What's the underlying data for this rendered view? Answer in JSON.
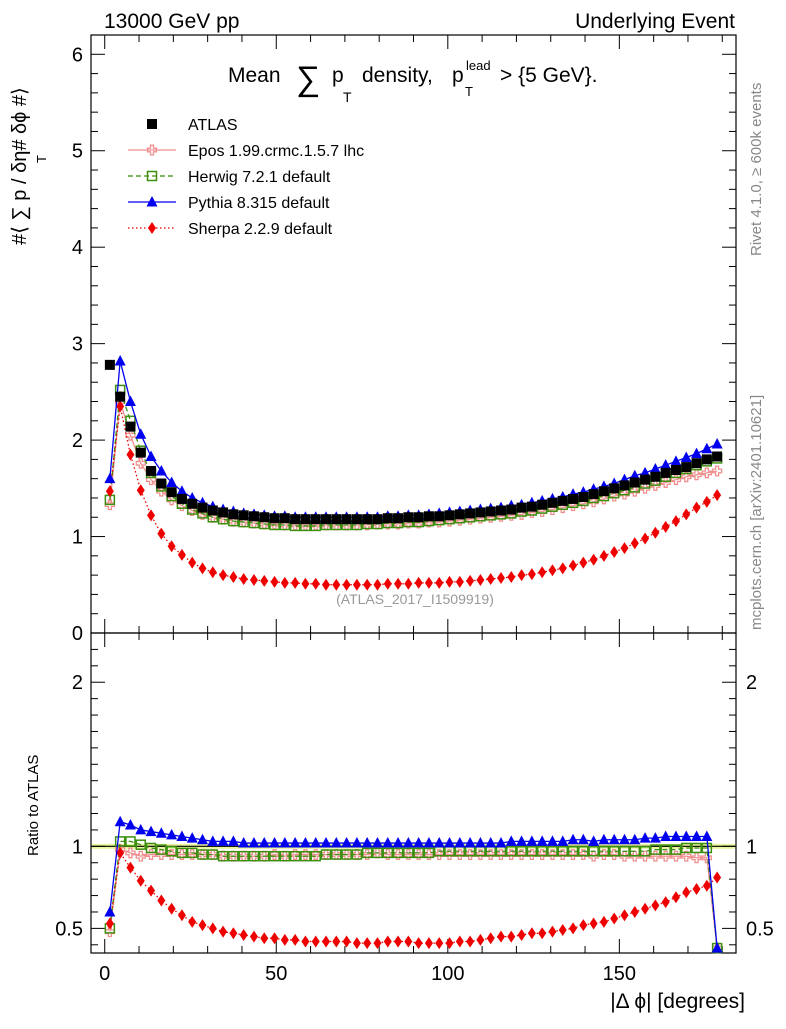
{
  "header": {
    "left": "13000 GeV pp",
    "right": "Underlying Event",
    "side_top": "Rivet 4.1.0, ≥ 600k events",
    "side_bottom": "mcplots.cern.ch [arXiv:2401.10621]",
    "analysis": "(ATLAS_2017_I1509919)"
  },
  "title": {
    "pre": "Mean",
    "sum": "∑",
    "p": "p",
    "sub": "T",
    "mid": "density,",
    "p2": "p",
    "sup": "lead",
    "sub2": "T",
    "post": "> {5 GeV}."
  },
  "axes": {
    "ylabel_main": "#⟨ ∑ p   / δη# δϕ #⟩",
    "ylabel_main_sub": "T",
    "ylabel_ratio": "Ratio to ATLAS",
    "xlabel": "|Δ ϕ| [degrees]"
  },
  "colors": {
    "atlas": "#000000",
    "epos": "#f08f8f",
    "herwig": "#3c8f0f",
    "pythia": "#0000ee",
    "sherpa": "#ee0000",
    "band": "#e8f59a"
  },
  "chart_data": [
    {
      "type": "scatter",
      "name": "main",
      "xlim": [
        -4,
        184
      ],
      "ylim": [
        0,
        6.2
      ],
      "yticks": [
        0,
        1,
        2,
        3,
        4,
        5,
        6
      ],
      "ytick_labels": [
        "0",
        "1",
        "2",
        "3",
        "4",
        "5",
        "6"
      ],
      "x": [
        1.5,
        4.5,
        7.5,
        10.5,
        13.5,
        16.5,
        19.5,
        22.5,
        25.5,
        28.5,
        31.5,
        34.5,
        37.5,
        40.5,
        43.5,
        46.5,
        49.5,
        52.5,
        55.5,
        58.5,
        61.5,
        64.5,
        67.5,
        70.5,
        73.5,
        76.5,
        79.5,
        82.5,
        85.5,
        88.5,
        91.5,
        94.5,
        97.5,
        100.5,
        103.5,
        106.5,
        109.5,
        112.5,
        115.5,
        118.5,
        121.5,
        124.5,
        127.5,
        130.5,
        133.5,
        136.5,
        139.5,
        142.5,
        145.5,
        148.5,
        151.5,
        154.5,
        157.5,
        160.5,
        163.5,
        166.5,
        169.5,
        172.5,
        175.5,
        178.5
      ],
      "series": [
        {
          "name": "ATLAS",
          "marker": "square",
          "values": [
            2.78,
            2.45,
            2.14,
            1.87,
            1.68,
            1.55,
            1.46,
            1.39,
            1.34,
            1.3,
            1.27,
            1.25,
            1.23,
            1.22,
            1.21,
            1.2,
            1.19,
            1.19,
            1.18,
            1.18,
            1.18,
            1.18,
            1.18,
            1.18,
            1.18,
            1.18,
            1.18,
            1.19,
            1.19,
            1.2,
            1.2,
            1.21,
            1.21,
            1.22,
            1.23,
            1.24,
            1.25,
            1.26,
            1.27,
            1.28,
            1.3,
            1.31,
            1.33,
            1.35,
            1.37,
            1.39,
            1.41,
            1.44,
            1.47,
            1.5,
            1.53,
            1.56,
            1.59,
            1.62,
            1.66,
            1.69,
            1.72,
            1.76,
            1.8,
            1.83
          ]
        },
        {
          "name": "Epos 1.99.crmc.1.5.7 lhc",
          "marker": "cross",
          "values": [
            1.33,
            2.4,
            2.05,
            1.76,
            1.59,
            1.47,
            1.38,
            1.32,
            1.27,
            1.23,
            1.2,
            1.18,
            1.16,
            1.15,
            1.14,
            1.13,
            1.13,
            1.12,
            1.12,
            1.12,
            1.12,
            1.12,
            1.12,
            1.12,
            1.12,
            1.12,
            1.13,
            1.13,
            1.13,
            1.14,
            1.14,
            1.15,
            1.15,
            1.16,
            1.17,
            1.18,
            1.19,
            1.2,
            1.21,
            1.22,
            1.23,
            1.25,
            1.26,
            1.28,
            1.3,
            1.32,
            1.34,
            1.36,
            1.39,
            1.42,
            1.44,
            1.47,
            1.5,
            1.53,
            1.56,
            1.59,
            1.62,
            1.64,
            1.66,
            1.68
          ]
        },
        {
          "name": "Herwig 7.2.1 default",
          "marker": "opensquare",
          "values": [
            1.38,
            2.52,
            2.2,
            1.89,
            1.66,
            1.52,
            1.42,
            1.34,
            1.28,
            1.24,
            1.2,
            1.18,
            1.16,
            1.15,
            1.14,
            1.13,
            1.12,
            1.12,
            1.11,
            1.11,
            1.11,
            1.12,
            1.12,
            1.12,
            1.12,
            1.13,
            1.13,
            1.14,
            1.14,
            1.15,
            1.15,
            1.16,
            1.17,
            1.18,
            1.19,
            1.2,
            1.21,
            1.22,
            1.23,
            1.24,
            1.26,
            1.27,
            1.29,
            1.31,
            1.33,
            1.35,
            1.37,
            1.4,
            1.42,
            1.45,
            1.48,
            1.51,
            1.55,
            1.58,
            1.62,
            1.66,
            1.7,
            1.74,
            1.78,
            1.81
          ]
        },
        {
          "name": "Pythia 8.315 default",
          "marker": "triangle",
          "values": [
            1.6,
            2.82,
            2.4,
            2.06,
            1.83,
            1.68,
            1.56,
            1.47,
            1.4,
            1.35,
            1.31,
            1.28,
            1.26,
            1.24,
            1.23,
            1.22,
            1.21,
            1.21,
            1.2,
            1.2,
            1.2,
            1.2,
            1.2,
            1.2,
            1.2,
            1.2,
            1.2,
            1.21,
            1.21,
            1.22,
            1.22,
            1.23,
            1.24,
            1.25,
            1.26,
            1.27,
            1.28,
            1.29,
            1.3,
            1.32,
            1.33,
            1.35,
            1.37,
            1.39,
            1.41,
            1.44,
            1.46,
            1.49,
            1.52,
            1.55,
            1.59,
            1.63,
            1.66,
            1.7,
            1.74,
            1.78,
            1.82,
            1.86,
            1.91,
            1.96
          ]
        },
        {
          "name": "Sherpa 2.2.9 default",
          "marker": "diamond",
          "values": [
            1.47,
            2.35,
            1.85,
            1.48,
            1.22,
            1.03,
            0.9,
            0.81,
            0.73,
            0.67,
            0.63,
            0.6,
            0.58,
            0.56,
            0.55,
            0.54,
            0.53,
            0.52,
            0.52,
            0.51,
            0.51,
            0.5,
            0.5,
            0.5,
            0.5,
            0.5,
            0.5,
            0.51,
            0.51,
            0.51,
            0.52,
            0.52,
            0.52,
            0.53,
            0.53,
            0.54,
            0.55,
            0.56,
            0.57,
            0.58,
            0.6,
            0.61,
            0.63,
            0.65,
            0.67,
            0.7,
            0.73,
            0.76,
            0.8,
            0.84,
            0.88,
            0.93,
            0.98,
            1.04,
            1.1,
            1.16,
            1.23,
            1.3,
            1.36,
            1.43
          ]
        }
      ]
    },
    {
      "type": "scatter",
      "name": "ratio",
      "xlim": [
        -4,
        184
      ],
      "ylim": [
        0.35,
        2.3
      ],
      "yticks": [
        0.5,
        1,
        2
      ],
      "ytick_labels": [
        "0.5",
        "1",
        "2"
      ],
      "xticks": [
        0,
        50,
        100,
        150
      ],
      "xtick_labels": [
        "0",
        "50",
        "100",
        "150"
      ],
      "band": [
        0.985,
        1.015
      ],
      "series": [
        {
          "name": "Epos 1.99.crmc.1.5.7 lhc",
          "marker": "cross",
          "values": [
            0.48,
            0.98,
            0.96,
            0.94,
            0.95,
            0.95,
            0.95,
            0.95,
            0.95,
            0.95,
            0.95,
            0.94,
            0.94,
            0.94,
            0.94,
            0.94,
            0.95,
            0.94,
            0.95,
            0.95,
            0.95,
            0.95,
            0.95,
            0.95,
            0.95,
            0.95,
            0.96,
            0.95,
            0.95,
            0.95,
            0.95,
            0.95,
            0.95,
            0.95,
            0.95,
            0.95,
            0.95,
            0.95,
            0.95,
            0.95,
            0.95,
            0.95,
            0.95,
            0.95,
            0.95,
            0.95,
            0.95,
            0.94,
            0.95,
            0.95,
            0.94,
            0.94,
            0.94,
            0.94,
            0.94,
            0.94,
            0.94,
            0.93,
            0.93,
            0.38
          ]
        },
        {
          "name": "Herwig 7.2.1 default",
          "marker": "opensquare",
          "values": [
            0.5,
            1.03,
            1.03,
            1.01,
            0.99,
            0.98,
            0.97,
            0.96,
            0.96,
            0.95,
            0.95,
            0.94,
            0.94,
            0.94,
            0.94,
            0.94,
            0.94,
            0.94,
            0.94,
            0.94,
            0.94,
            0.95,
            0.95,
            0.95,
            0.95,
            0.96,
            0.96,
            0.96,
            0.96,
            0.96,
            0.96,
            0.96,
            0.97,
            0.97,
            0.97,
            0.97,
            0.97,
            0.97,
            0.97,
            0.97,
            0.97,
            0.97,
            0.97,
            0.97,
            0.97,
            0.97,
            0.97,
            0.97,
            0.97,
            0.97,
            0.97,
            0.97,
            0.97,
            0.98,
            0.98,
            0.98,
            0.99,
            0.99,
            0.99,
            0.38
          ]
        },
        {
          "name": "Pythia 8.315 default",
          "marker": "triangle",
          "values": [
            0.6,
            1.15,
            1.13,
            1.1,
            1.09,
            1.08,
            1.07,
            1.06,
            1.05,
            1.04,
            1.03,
            1.03,
            1.03,
            1.02,
            1.02,
            1.02,
            1.02,
            1.02,
            1.02,
            1.02,
            1.02,
            1.02,
            1.02,
            1.02,
            1.02,
            1.02,
            1.02,
            1.02,
            1.02,
            1.02,
            1.02,
            1.02,
            1.02,
            1.02,
            1.02,
            1.02,
            1.02,
            1.02,
            1.02,
            1.03,
            1.03,
            1.03,
            1.03,
            1.03,
            1.03,
            1.04,
            1.04,
            1.03,
            1.04,
            1.04,
            1.04,
            1.04,
            1.05,
            1.05,
            1.06,
            1.06,
            1.06,
            1.06,
            1.06,
            0.38
          ]
        },
        {
          "name": "Sherpa 2.2.9 default",
          "marker": "diamond",
          "values": [
            0.53,
            0.96,
            0.87,
            0.79,
            0.73,
            0.67,
            0.62,
            0.58,
            0.54,
            0.52,
            0.5,
            0.48,
            0.47,
            0.46,
            0.45,
            0.44,
            0.44,
            0.43,
            0.43,
            0.42,
            0.42,
            0.42,
            0.42,
            0.42,
            0.41,
            0.41,
            0.41,
            0.42,
            0.42,
            0.42,
            0.41,
            0.41,
            0.41,
            0.41,
            0.42,
            0.42,
            0.43,
            0.44,
            0.45,
            0.45,
            0.46,
            0.47,
            0.47,
            0.48,
            0.49,
            0.5,
            0.52,
            0.53,
            0.54,
            0.56,
            0.58,
            0.6,
            0.62,
            0.64,
            0.66,
            0.69,
            0.72,
            0.74,
            0.76,
            0.81
          ]
        }
      ]
    }
  ]
}
